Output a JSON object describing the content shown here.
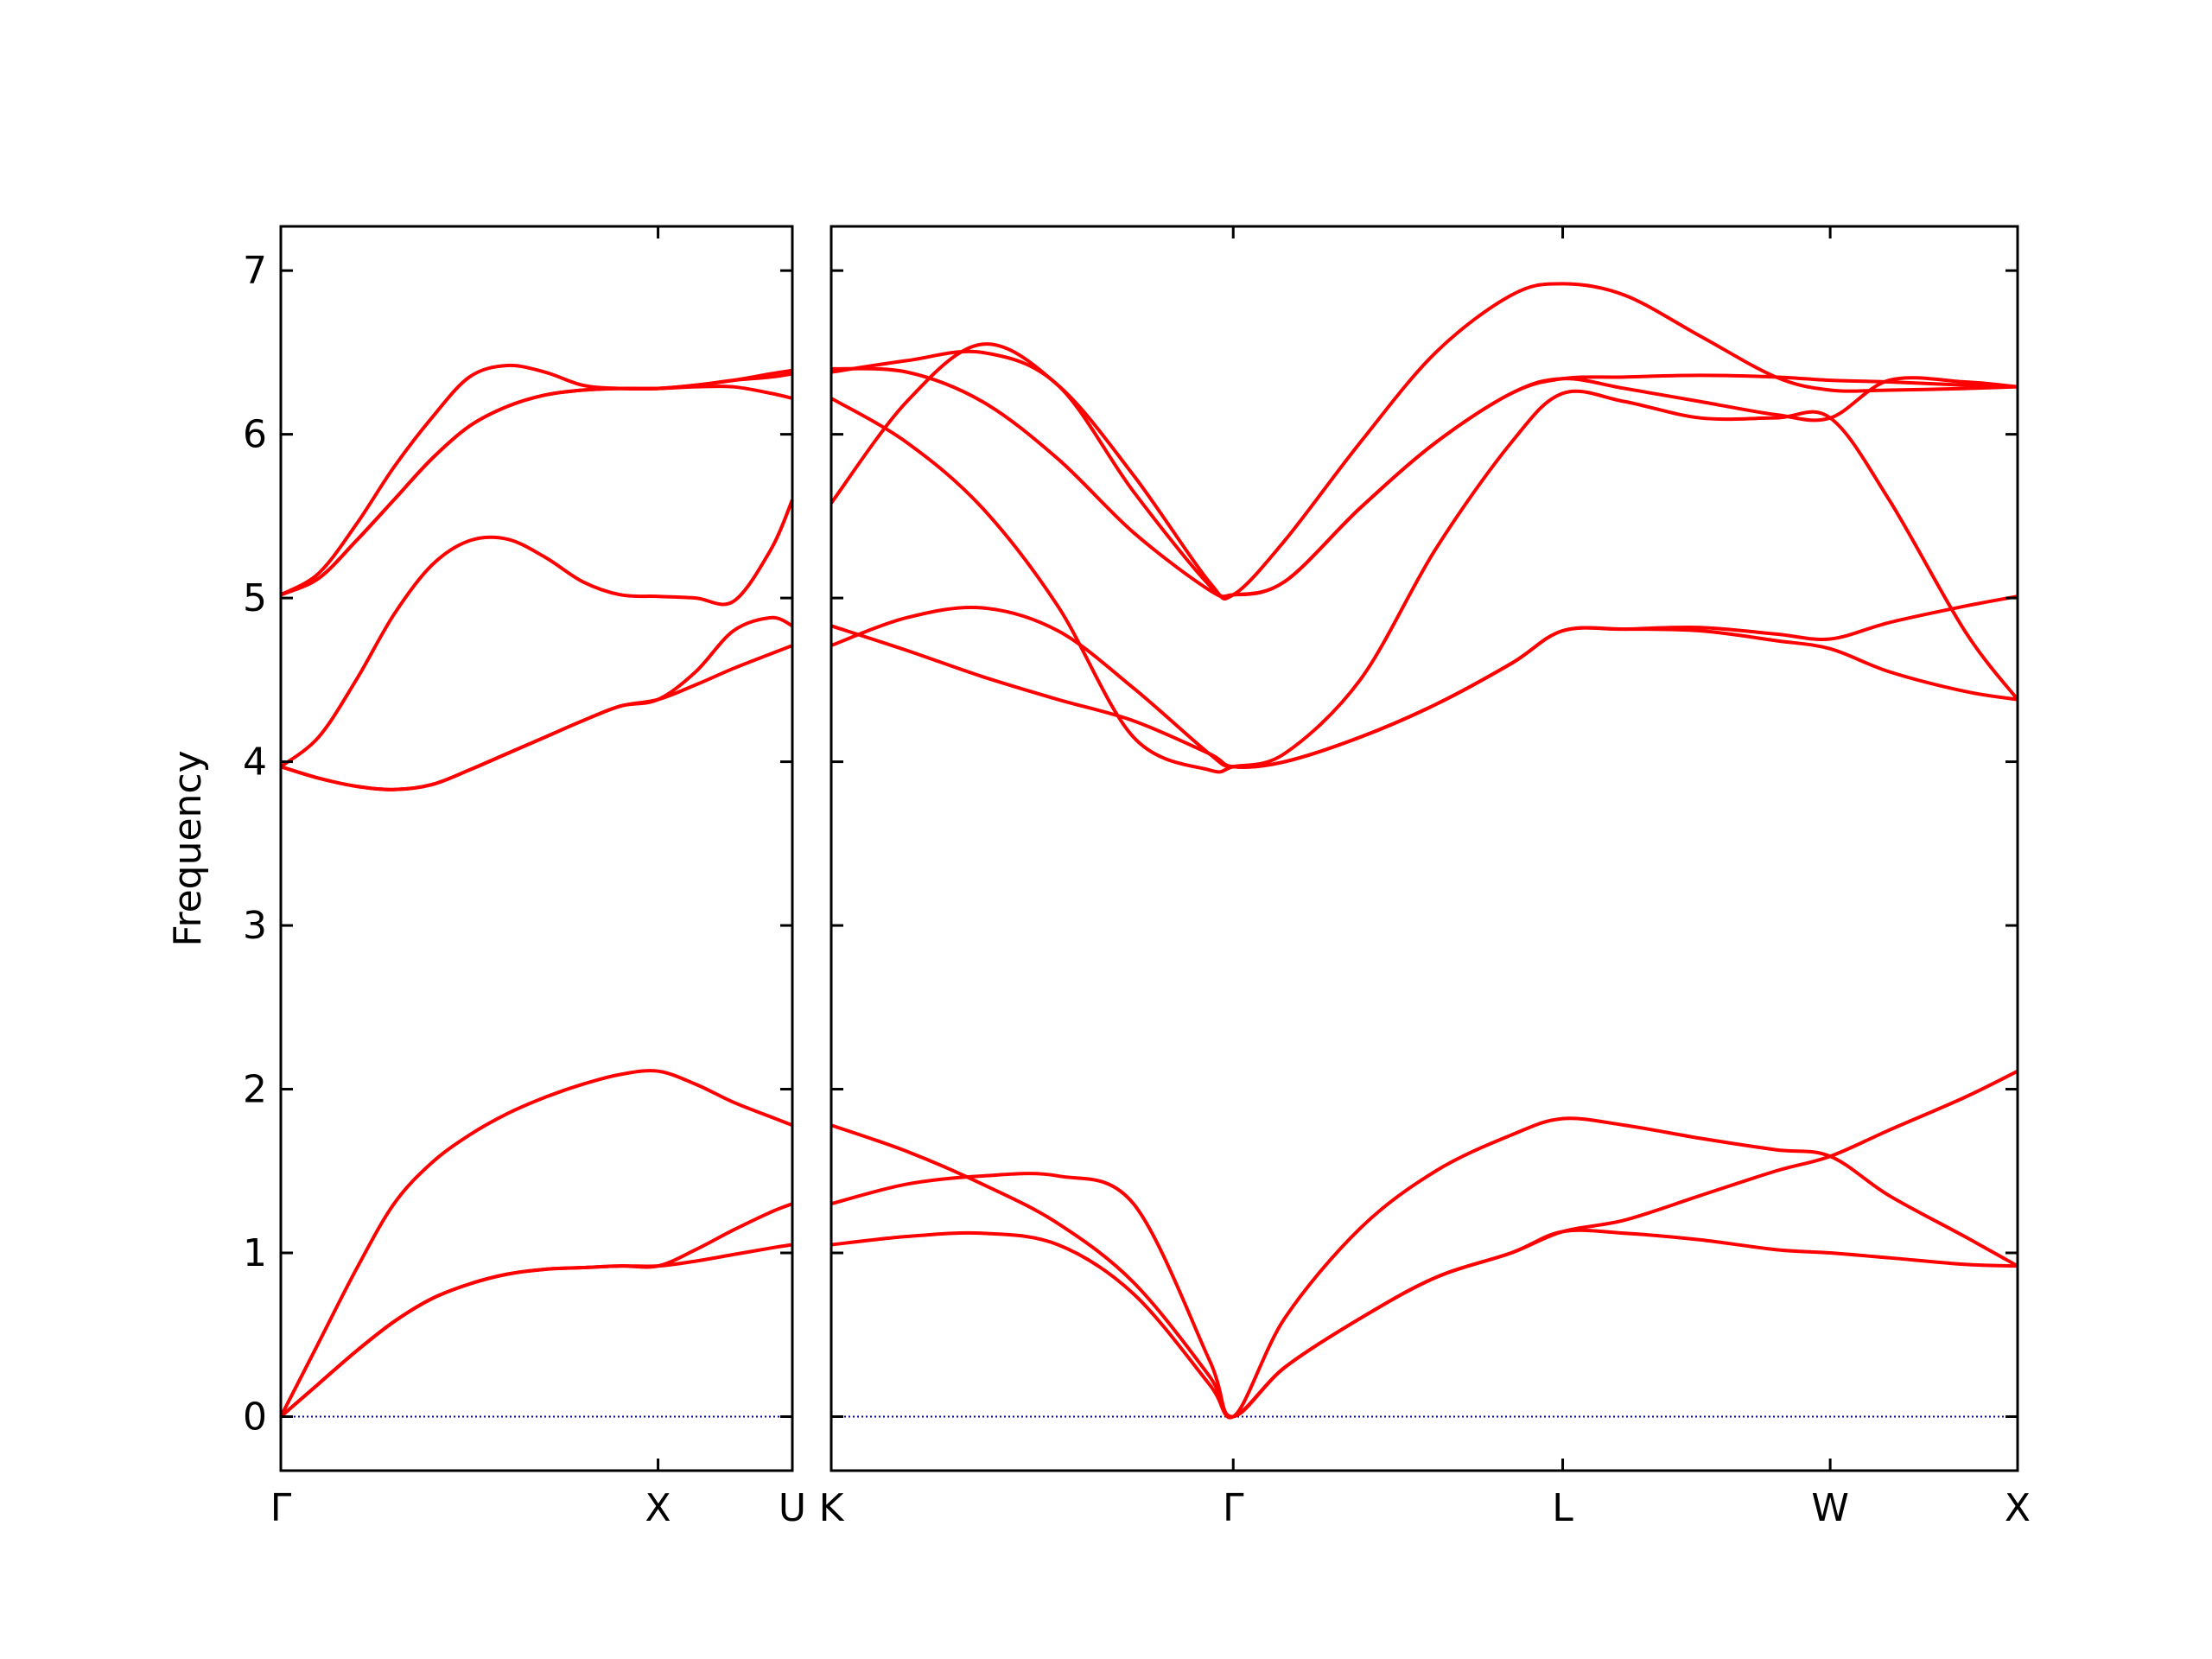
{
  "chart_data": [
    {
      "type": "line",
      "ylabel": "Frequency",
      "x": [
        0,
        0.1,
        0.2,
        0.3,
        0.4,
        0.5,
        0.6,
        0.7,
        0.8,
        0.9,
        1.0,
        1.1,
        1.2,
        1.3,
        1.356
      ],
      "xlim": [
        0,
        1.356
      ],
      "xticks": [
        {
          "value": 0,
          "label": "Γ"
        },
        {
          "value": 1.0,
          "label": "X"
        },
        {
          "value": 1.356,
          "label": "U"
        }
      ],
      "ylim": [
        -0.33,
        7.27
      ],
      "yticks": [
        0,
        1,
        2,
        3,
        4,
        5,
        6,
        7
      ],
      "show_ytick_labels": true,
      "zero_line_color": "#0000aa",
      "series": [
        {
          "color": "#ff0000",
          "values": [
            0,
            0.2,
            0.4,
            0.58,
            0.72,
            0.81,
            0.87,
            0.9,
            0.91,
            0.92,
            0.92,
            0.95,
            0.99,
            1.03,
            1.05
          ]
        },
        {
          "color": "#ff0000",
          "values": [
            0,
            0.2,
            0.4,
            0.58,
            0.72,
            0.81,
            0.87,
            0.9,
            0.91,
            0.92,
            0.92,
            1.02,
            1.14,
            1.25,
            1.3
          ]
        },
        {
          "color": "#ff0000",
          "values": [
            0,
            0.45,
            0.9,
            1.3,
            1.55,
            1.72,
            1.85,
            1.95,
            2.03,
            2.09,
            2.11,
            2.03,
            1.92,
            1.83,
            1.78
          ]
        },
        {
          "color": "#ff0000",
          "values": [
            3.97,
            3.9,
            3.85,
            3.83,
            3.86,
            3.95,
            4.05,
            4.15,
            4.25,
            4.34,
            4.38,
            4.47,
            4.57,
            4.66,
            4.71
          ]
        },
        {
          "color": "#ff0000",
          "values": [
            3.97,
            3.9,
            3.85,
            3.83,
            3.86,
            3.95,
            4.05,
            4.15,
            4.25,
            4.34,
            4.38,
            4.55,
            4.8,
            4.88,
            4.83
          ]
        },
        {
          "color": "#ff0000",
          "values": [
            3.97,
            4.15,
            4.5,
            4.9,
            5.2,
            5.35,
            5.36,
            5.25,
            5.1,
            5.02,
            5.01,
            5.0,
            4.98,
            5.3,
            5.6
          ]
        },
        {
          "color": "#ff0000",
          "values": [
            5.02,
            5.15,
            5.45,
            5.8,
            6.1,
            6.35,
            6.42,
            6.38,
            6.3,
            6.28,
            6.28,
            6.3,
            6.33,
            6.37,
            6.39
          ]
        },
        {
          "color": "#ff0000",
          "values": [
            5.02,
            5.12,
            5.35,
            5.6,
            5.85,
            6.05,
            6.17,
            6.24,
            6.27,
            6.28,
            6.28,
            6.29,
            6.29,
            6.25,
            6.22
          ]
        },
        {
          "color": "#ff0000",
          "values": [
            5.02,
            5.12,
            5.35,
            5.6,
            5.85,
            6.05,
            6.17,
            6.24,
            6.27,
            6.28,
            6.28,
            6.3,
            6.33,
            6.35,
            6.37
          ]
        }
      ]
    },
    {
      "type": "line",
      "x": [
        0,
        0.2,
        0.4,
        0.6,
        0.8,
        1.0,
        1.064,
        1.2,
        1.4,
        1.6,
        1.8,
        1.936,
        2.1,
        2.3,
        2.5,
        2.644,
        2.8,
        3.0,
        3.14
      ],
      "xlim": [
        0,
        3.14
      ],
      "xticks": [
        {
          "value": 0,
          "label": "K"
        },
        {
          "value": 1.064,
          "label": "Γ"
        },
        {
          "value": 1.936,
          "label": "L"
        },
        {
          "value": 2.644,
          "label": "W"
        },
        {
          "value": 3.14,
          "label": "X"
        }
      ],
      "ylim": [
        -0.33,
        7.27
      ],
      "yticks": [
        0,
        1,
        2,
        3,
        4,
        5,
        6,
        7
      ],
      "show_ytick_labels": false,
      "zero_line_color": "#0000aa",
      "series": [
        {
          "color": "#ff0000",
          "values": [
            1.05,
            1.1,
            1.12,
            1.05,
            0.75,
            0.2,
            0,
            0.3,
            0.6,
            0.85,
            1.0,
            1.13,
            1.12,
            1.08,
            1.02,
            1.0,
            0.97,
            0.93,
            0.92
          ]
        },
        {
          "color": "#ff0000",
          "values": [
            1.3,
            1.42,
            1.47,
            1.47,
            1.3,
            0.35,
            0,
            0.6,
            1.15,
            1.5,
            1.72,
            1.82,
            1.78,
            1.7,
            1.63,
            1.59,
            1.35,
            1.1,
            0.92
          ]
        },
        {
          "color": "#ff0000",
          "values": [
            1.78,
            1.62,
            1.42,
            1.18,
            0.82,
            0.25,
            0,
            0.3,
            0.6,
            0.85,
            1.0,
            1.13,
            1.2,
            1.35,
            1.5,
            1.59,
            1.75,
            1.95,
            2.11
          ]
        },
        {
          "color": "#ff0000",
          "values": [
            4.83,
            4.68,
            4.52,
            4.38,
            4.25,
            4.05,
            3.97,
            4.0,
            4.15,
            4.35,
            4.6,
            4.8,
            4.81,
            4.82,
            4.78,
            4.75,
            4.85,
            4.95,
            5.01
          ]
        },
        {
          "color": "#ff0000",
          "values": [
            4.71,
            4.88,
            4.94,
            4.8,
            4.45,
            4.05,
            3.97,
            4.0,
            4.15,
            4.35,
            4.6,
            4.8,
            4.81,
            4.8,
            4.74,
            4.69,
            4.55,
            4.43,
            4.38
          ]
        },
        {
          "color": "#ff0000",
          "values": [
            6.22,
            5.95,
            5.55,
            4.95,
            4.15,
            3.95,
            3.97,
            4.05,
            4.5,
            5.3,
            5.95,
            6.25,
            6.2,
            6.1,
            6.1,
            6.1,
            5.6,
            4.8,
            4.38
          ]
        },
        {
          "color": "#ff0000",
          "values": [
            5.58,
            6.2,
            6.55,
            6.3,
            5.75,
            5.1,
            5.02,
            5.35,
            5.95,
            6.5,
            6.85,
            6.92,
            6.85,
            6.6,
            6.35,
            6.27,
            6.27,
            6.28,
            6.29
          ]
        },
        {
          "color": "#ff0000",
          "values": [
            6.38,
            6.45,
            6.5,
            6.3,
            5.65,
            5.08,
            5.02,
            5.1,
            5.55,
            5.95,
            6.25,
            6.34,
            6.35,
            6.36,
            6.35,
            6.33,
            6.32,
            6.3,
            6.29
          ]
        },
        {
          "color": "#ff0000",
          "values": [
            6.4,
            6.38,
            6.2,
            5.85,
            5.4,
            5.05,
            5.02,
            5.1,
            5.55,
            5.95,
            6.25,
            6.34,
            6.28,
            6.2,
            6.12,
            6.1,
            6.33,
            6.32,
            6.29
          ]
        }
      ]
    }
  ]
}
